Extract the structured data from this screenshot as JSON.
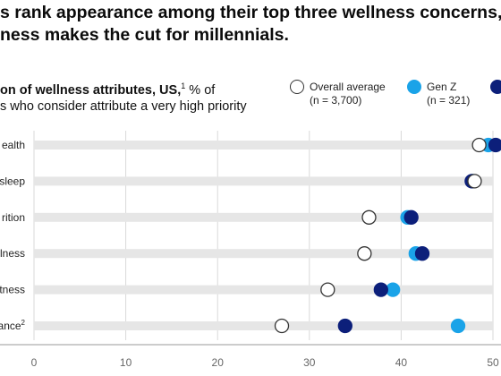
{
  "headline": {
    "line1": "s rank appearance among their top three wellness concerns,",
    "line2": "ness makes the cut for millennials."
  },
  "subtitle": {
    "bold": "on of wellness attributes, US,",
    "sup": "1",
    "rest": " % of",
    "line2": "s who consider attribute a very high priority"
  },
  "legend": [
    {
      "label": "Overall average",
      "sub": "(n = 3,700)",
      "color": "#ffffff",
      "stroke": "#333333"
    },
    {
      "label": "Gen Z",
      "sub": "(n = 321)",
      "color": "#1aa3e8",
      "stroke": "#1aa3e8"
    },
    {
      "label": "",
      "sub": "",
      "color": "#0c1f7a",
      "stroke": "#0c1f7a"
    }
  ],
  "chart_data": {
    "type": "dot",
    "categories": [
      "ealth",
      "sleep",
      "rition",
      "llness",
      "tness",
      "ance"
    ],
    "category_sups": [
      "",
      "",
      "",
      "",
      "",
      "2"
    ],
    "series": [
      {
        "name": "Overall average",
        "values": [
          48.5,
          48,
          36.5,
          36,
          32,
          27
        ],
        "color": "#ffffff",
        "stroke": "#333333"
      },
      {
        "name": "Gen Z",
        "values": [
          49.5,
          47.8,
          40.7,
          41.6,
          39.1,
          46.2
        ],
        "color": "#1aa3e8",
        "stroke": "#1aa3e8"
      },
      {
        "name": "",
        "values": [
          50.3,
          47.7,
          41.1,
          42.3,
          37.8,
          33.9
        ],
        "color": "#0c1f7a",
        "stroke": "#0c1f7a"
      }
    ],
    "xticks": [
      0,
      10,
      20,
      30,
      40,
      50
    ],
    "xlim": [
      0,
      50
    ]
  }
}
